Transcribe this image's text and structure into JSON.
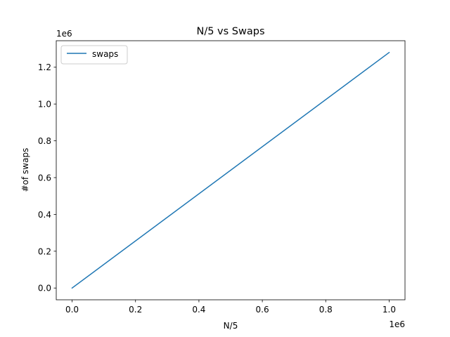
{
  "chart_data": {
    "type": "line",
    "title": "N/5 vs Swaps",
    "xlabel": "N/5",
    "ylabel": "#of swaps",
    "x_offset_text": "1e6",
    "y_offset_text": "1e6",
    "x_ticks": [
      0.0,
      0.2,
      0.4,
      0.6,
      0.8,
      1.0
    ],
    "x_tick_labels": [
      "0.0",
      "0.2",
      "0.4",
      "0.6",
      "0.8",
      "1.0"
    ],
    "y_ticks": [
      0.0,
      0.2,
      0.4,
      0.6,
      0.8,
      1.0,
      1.2
    ],
    "y_tick_labels": [
      "0.0",
      "0.2",
      "0.4",
      "0.6",
      "0.8",
      "1.0",
      "1.2"
    ],
    "xlim": [
      -0.05,
      1.05
    ],
    "ylim": [
      -0.064,
      1.344
    ],
    "grid": false,
    "legend_position": "upper-left",
    "series": [
      {
        "name": "swaps",
        "color": "#1f77b4",
        "x": [
          0.0,
          1.0
        ],
        "y": [
          0.0,
          1.28
        ]
      }
    ]
  }
}
